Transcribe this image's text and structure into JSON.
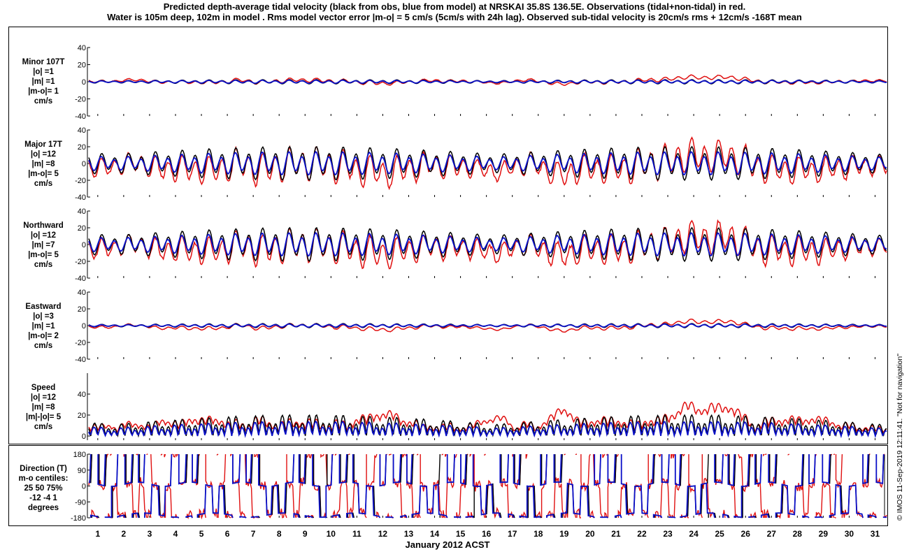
{
  "title": {
    "line1": "Predicted depth-average tidal velocity (black from obs, blue from model) at NRSKAI 35.8S 136.5E. Observations (tidal+non-tidal) in red.",
    "line2": "Water is 105m deep, 102m in model . Rms model vector error |m-o| = 5 cm/s (5cm/s with 24h lag). Observed sub-tidal velocity is 20cm/s rms + 12cm/s -168T mean"
  },
  "colors": {
    "obs": "#e01010",
    "tidal_obs": "#000000",
    "model": "#0a10c8"
  },
  "footer": "© IMOS 11-Sep-2019 12:11:41. \"Not for navigation\"",
  "chart_data": {
    "type": "line",
    "xlabel": "January 2012 ACST",
    "xlim": [
      0.6,
      31.5
    ],
    "day_ticks": [
      "1",
      "2",
      "3",
      "4",
      "5",
      "6",
      "7",
      "8",
      "9",
      "10",
      "11",
      "12",
      "13",
      "14",
      "15",
      "16",
      "17",
      "18",
      "19",
      "20",
      "21",
      "22",
      "23",
      "24",
      "25",
      "26",
      "27",
      "28",
      "29",
      "30",
      "31"
    ],
    "series_names": [
      "Tidal fit to observations (black)",
      "Model tidal prediction (blue)",
      "Observations tidal+non-tidal (red)"
    ],
    "panels": [
      {
        "key": "minor",
        "label_lines": [
          "Minor 107T",
          "|o| =1",
          "|m| =1",
          "|m-o|= 1",
          "cm/s"
        ],
        "ylim": [
          -40,
          40
        ],
        "yticks": [
          "40",
          "20",
          "0",
          "-20",
          "-40"
        ],
        "tidal_amp": 2,
        "model_amp": 1.5,
        "obs_noise": 5,
        "obs_bias": 1,
        "kind": "vel"
      },
      {
        "key": "major",
        "label_lines": [
          "Major 17T",
          "|o| =12",
          "|m| =8",
          "|m-o|= 5",
          "cm/s"
        ],
        "ylim": [
          -40,
          40
        ],
        "yticks": [
          "40",
          "20",
          "0",
          "-20",
          "-40"
        ],
        "tidal_amp": 16,
        "model_amp": 11,
        "obs_noise": 14,
        "obs_bias": -3,
        "kind": "vel"
      },
      {
        "key": "north",
        "label_lines": [
          "Northward",
          "|o| =12",
          "|m| =7",
          "|m-o|= 5",
          "cm/s"
        ],
        "ylim": [
          -40,
          40
        ],
        "yticks": [
          "40",
          "20",
          "0",
          "-20",
          "-40"
        ],
        "tidal_amp": 16,
        "model_amp": 11,
        "obs_noise": 14,
        "obs_bias": -3,
        "kind": "vel"
      },
      {
        "key": "east",
        "label_lines": [
          "Eastward",
          "|o| =3",
          "|m| =1",
          "|m-o|= 2",
          "cm/s"
        ],
        "ylim": [
          -40,
          40
        ],
        "yticks": [
          "40",
          "20",
          "0",
          "-20",
          "-40"
        ],
        "tidal_amp": 2,
        "model_amp": 1.5,
        "obs_noise": 7,
        "obs_bias": -1,
        "kind": "vel"
      },
      {
        "key": "speed",
        "label_lines": [
          "Speed",
          "|o| =12",
          "|m| =8",
          "|m|-|o|= 5",
          "cm/s"
        ],
        "ylim": [
          -4,
          60
        ],
        "yticks": [
          "40",
          "20",
          "0"
        ],
        "tidal_amp": 16,
        "model_amp": 11,
        "obs_noise": 14,
        "obs_bias": 0,
        "kind": "speed"
      },
      {
        "key": "direction",
        "label_lines": [
          "Direction (T)",
          "m-o centiles:",
          "25  50  75%",
          "-12  -4   1",
          "degrees"
        ],
        "ylim": [
          -180,
          180
        ],
        "yticks": [
          "180",
          "90",
          "0",
          "-90",
          "-180"
        ],
        "kind": "direction"
      }
    ]
  }
}
